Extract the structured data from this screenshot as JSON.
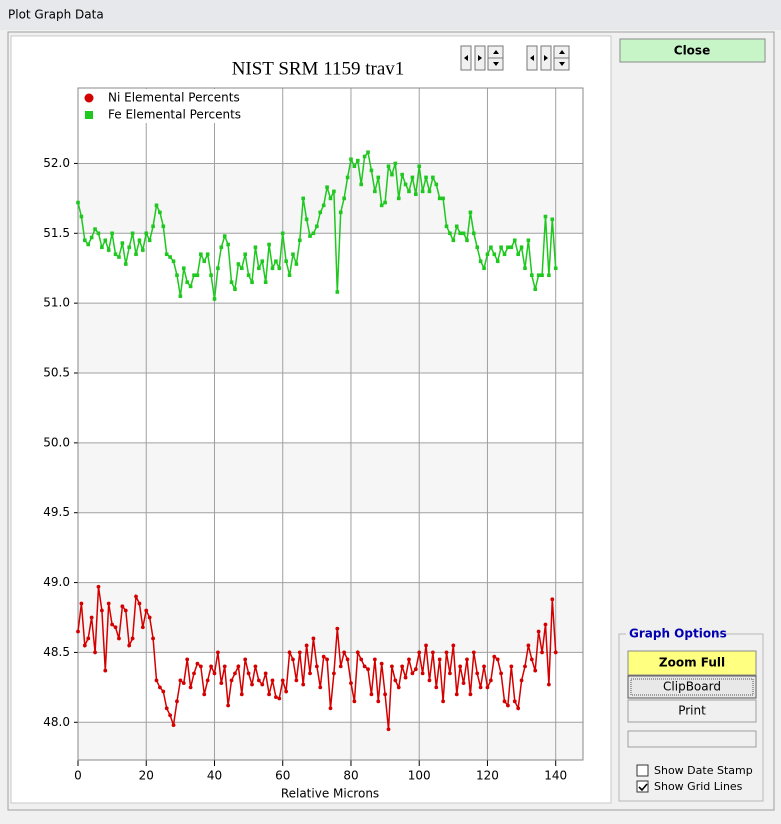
{
  "window": {
    "title": "Plot Graph Data"
  },
  "buttons": {
    "close": "Close",
    "zoom_full": "Zoom Full",
    "clipboard": "ClipBoard",
    "print": "Print"
  },
  "graph_options": {
    "title": "Graph Options",
    "checkboxes": [
      {
        "label": "Show Date Stamp",
        "checked": false
      },
      {
        "label": "Show Grid Lines",
        "checked": true
      }
    ]
  },
  "chart_data": {
    "type": "line",
    "title": "NIST SRM 1159 trav1",
    "xlabel": "Relative Microns",
    "x": [
      0,
      1,
      2,
      3,
      4,
      5,
      6,
      7,
      8,
      9,
      10,
      11,
      12,
      13,
      14,
      15,
      16,
      17,
      18,
      19,
      20,
      21,
      22,
      23,
      24,
      25,
      26,
      27,
      28,
      29,
      30,
      31,
      32,
      33,
      34,
      35,
      36,
      37,
      38,
      39,
      40,
      41,
      42,
      43,
      44,
      45,
      46,
      47,
      48,
      49,
      50,
      51,
      52,
      53,
      54,
      55,
      56,
      57,
      58,
      59,
      60,
      61,
      62,
      63,
      64,
      65,
      66,
      67,
      68,
      69,
      70,
      71,
      72,
      73,
      74,
      75,
      76,
      77,
      78,
      79,
      80,
      81,
      82,
      83,
      84,
      85,
      86,
      87,
      88,
      89,
      90,
      91,
      92,
      93,
      94,
      95,
      96,
      97,
      98,
      99,
      100,
      101,
      102,
      103,
      104,
      105,
      106,
      107,
      108,
      109,
      110,
      111,
      112,
      113,
      114,
      115,
      116,
      117,
      118,
      119,
      120,
      121,
      122,
      123,
      124,
      125,
      126,
      127,
      128,
      129,
      130,
      131,
      132,
      133,
      134,
      135,
      136,
      137,
      138,
      139,
      140
    ],
    "series": [
      {
        "name": "Ni Elemental Percents",
        "color": "#d40000",
        "marker": "circle",
        "values": [
          48.65,
          48.85,
          48.55,
          48.6,
          48.75,
          48.5,
          48.97,
          48.8,
          48.37,
          48.85,
          48.7,
          48.68,
          48.6,
          48.83,
          48.8,
          48.55,
          48.6,
          48.9,
          48.85,
          48.68,
          48.8,
          48.75,
          48.6,
          48.3,
          48.25,
          48.22,
          48.1,
          48.05,
          47.98,
          48.15,
          48.3,
          48.28,
          48.45,
          48.25,
          48.35,
          48.42,
          48.4,
          48.2,
          48.3,
          48.4,
          48.35,
          48.5,
          48.28,
          48.4,
          48.12,
          48.3,
          48.35,
          48.4,
          48.2,
          48.45,
          48.35,
          48.27,
          48.4,
          48.3,
          48.27,
          48.35,
          48.2,
          48.3,
          48.18,
          48.17,
          48.3,
          48.22,
          48.5,
          48.45,
          48.3,
          48.5,
          48.27,
          48.55,
          48.35,
          48.6,
          48.4,
          48.25,
          48.47,
          48.45,
          48.1,
          48.35,
          48.67,
          48.4,
          48.5,
          48.45,
          48.28,
          48.15,
          48.5,
          48.45,
          48.4,
          48.38,
          48.2,
          48.45,
          48.15,
          48.42,
          48.2,
          47.95,
          48.4,
          48.3,
          48.25,
          48.4,
          48.32,
          48.45,
          48.35,
          48.38,
          48.5,
          48.35,
          48.55,
          48.3,
          48.5,
          48.25,
          48.45,
          48.15,
          48.5,
          48.35,
          48.55,
          48.2,
          48.4,
          48.28,
          48.45,
          48.2,
          48.5,
          48.35,
          48.25,
          48.4,
          48.25,
          48.3,
          48.47,
          48.45,
          48.35,
          48.15,
          48.12,
          48.4,
          48.15,
          48.1,
          48.3,
          48.4,
          48.55,
          48.45,
          48.37,
          48.65,
          48.5,
          48.7,
          48.27,
          48.88,
          48.5
        ]
      },
      {
        "name": "Fe Elemental Percents",
        "color": "#1ec81e",
        "marker": "square",
        "values": [
          51.72,
          51.62,
          51.45,
          51.42,
          51.47,
          51.53,
          51.5,
          51.4,
          51.45,
          51.38,
          51.5,
          51.35,
          51.33,
          51.43,
          51.28,
          51.4,
          51.5,
          51.35,
          51.45,
          51.38,
          51.5,
          51.45,
          51.55,
          51.7,
          51.65,
          51.55,
          51.35,
          51.33,
          51.3,
          51.2,
          51.05,
          51.25,
          51.15,
          51.12,
          51.2,
          51.2,
          51.35,
          51.3,
          51.35,
          51.2,
          51.03,
          51.25,
          51.4,
          51.48,
          51.42,
          51.15,
          51.1,
          51.28,
          51.25,
          51.35,
          51.2,
          51.15,
          51.4,
          51.25,
          51.3,
          51.15,
          51.42,
          51.25,
          51.3,
          51.25,
          51.5,
          51.3,
          51.2,
          51.35,
          51.28,
          51.45,
          51.75,
          51.6,
          51.48,
          51.5,
          51.55,
          51.65,
          51.7,
          51.83,
          51.75,
          51.8,
          51.08,
          51.65,
          51.75,
          51.9,
          52.03,
          51.98,
          52.02,
          51.85,
          52.05,
          52.08,
          51.95,
          51.8,
          51.9,
          51.7,
          51.72,
          51.98,
          51.92,
          52.0,
          51.75,
          51.92,
          51.85,
          51.8,
          51.9,
          51.78,
          51.98,
          51.8,
          51.9,
          51.8,
          51.9,
          51.85,
          51.75,
          51.75,
          51.55,
          51.5,
          51.45,
          51.55,
          51.5,
          51.5,
          51.45,
          51.65,
          51.5,
          51.4,
          51.3,
          51.25,
          51.35,
          51.4,
          51.35,
          51.3,
          51.4,
          51.35,
          51.4,
          51.4,
          51.45,
          51.35,
          51.4,
          51.25,
          51.45,
          51.2,
          51.1,
          51.2,
          51.2,
          51.62,
          51.2,
          51.6,
          51.25
        ]
      }
    ],
    "xlim": [
      0,
      148
    ],
    "xticks": [
      0,
      20,
      40,
      60,
      80,
      100,
      120,
      140
    ],
    "ylim": [
      47.73,
      52.54
    ],
    "yticks": [
      {
        "value": 48,
        "label": "48.0"
      },
      48.5,
      {
        "value": 49,
        "label": "49.0"
      },
      49.5,
      {
        "value": 50,
        "label": "50.0"
      },
      50.5,
      {
        "value": 51,
        "label": "51.0"
      },
      51.5,
      {
        "value": 52,
        "label": "52.0"
      }
    ],
    "grid": true,
    "legend": "top-left"
  }
}
